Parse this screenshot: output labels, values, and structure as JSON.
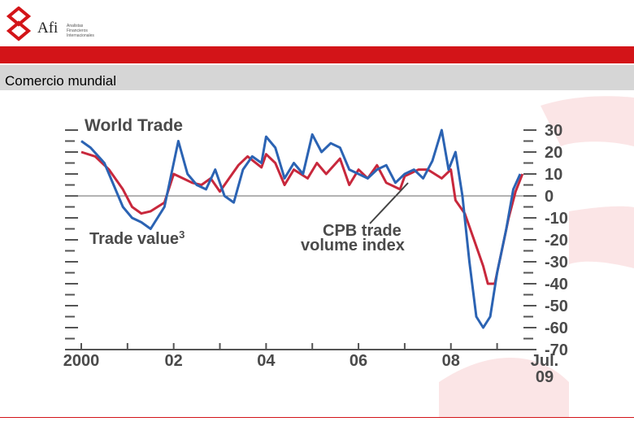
{
  "header": {
    "logo_name": "Afi",
    "logo_sub": [
      "Analistas",
      "Financieros",
      "Internacionales"
    ],
    "section_title": "Comercio mundial"
  },
  "colors": {
    "accent_red": "#d31418",
    "title_bar_gray": "#d6d6d6",
    "trade_value_line": "#c8283c",
    "cpb_volume_line": "#2b63b3"
  },
  "chart_data": {
    "type": "line",
    "title": "World Trade",
    "x_start": 2000,
    "x_end": 2009.5,
    "y_range": [
      -70,
      30
    ],
    "y_ticks": [
      30,
      20,
      10,
      0,
      -10,
      -20,
      -30,
      -40,
      -50,
      -60,
      -70
    ],
    "x_ticks": [
      {
        "value": 2000,
        "label": "2000"
      },
      {
        "value": 2002,
        "label": "02"
      },
      {
        "value": 2004,
        "label": "04"
      },
      {
        "value": 2006,
        "label": "06"
      },
      {
        "value": 2008,
        "label": "08"
      }
    ],
    "x_end_label": [
      "Jul.",
      "09"
    ],
    "zero_line": true,
    "series": [
      {
        "name": "Trade value",
        "superscript": "3",
        "color": "#c8283c",
        "x": [
          2000.0,
          2000.3,
          2000.6,
          2000.9,
          2001.1,
          2001.3,
          2001.5,
          2001.8,
          2002.0,
          2002.2,
          2002.4,
          2002.6,
          2002.8,
          2003.0,
          2003.2,
          2003.4,
          2003.6,
          2003.9,
          2004.0,
          2004.2,
          2004.4,
          2004.6,
          2004.9,
          2005.1,
          2005.3,
          2005.6,
          2005.8,
          2006.0,
          2006.2,
          2006.4,
          2006.6,
          2006.9,
          2007.0,
          2007.3,
          2007.5,
          2007.8,
          2008.0,
          2008.1,
          2008.3,
          2008.5,
          2008.7,
          2008.8,
          2008.95,
          2009.1,
          2009.25,
          2009.4,
          2009.55
        ],
        "values": [
          20,
          18,
          12,
          3,
          -5,
          -8,
          -7,
          -3,
          10,
          8,
          6,
          5,
          8,
          2,
          8,
          14,
          18,
          13,
          19,
          15,
          5,
          12,
          8,
          15,
          10,
          17,
          5,
          12,
          8,
          14,
          6,
          3,
          9,
          12,
          12,
          8,
          12,
          -2,
          -8,
          -20,
          -32,
          -40,
          -40,
          -25,
          -10,
          2,
          10
        ]
      },
      {
        "name": "CPB trade volume index",
        "color": "#2b63b3",
        "x": [
          2000.0,
          2000.2,
          2000.5,
          2000.7,
          2000.9,
          2001.1,
          2001.3,
          2001.5,
          2001.8,
          2002.0,
          2002.1,
          2002.3,
          2002.5,
          2002.7,
          2002.9,
          2003.1,
          2003.3,
          2003.5,
          2003.7,
          2003.9,
          2004.0,
          2004.2,
          2004.4,
          2004.6,
          2004.8,
          2005.0,
          2005.2,
          2005.4,
          2005.6,
          2005.8,
          2006.0,
          2006.2,
          2006.4,
          2006.6,
          2006.8,
          2007.0,
          2007.2,
          2007.4,
          2007.6,
          2007.8,
          2007.95,
          2008.1,
          2008.25,
          2008.4,
          2008.55,
          2008.7,
          2008.85,
          2009.0,
          2009.2,
          2009.35,
          2009.5
        ],
        "values": [
          25,
          22,
          15,
          5,
          -5,
          -10,
          -12,
          -15,
          -5,
          15,
          25,
          10,
          5,
          3,
          12,
          0,
          -3,
          12,
          18,
          15,
          27,
          22,
          8,
          15,
          10,
          28,
          20,
          24,
          22,
          12,
          10,
          8,
          12,
          14,
          6,
          10,
          12,
          8,
          16,
          30,
          12,
          20,
          0,
          -30,
          -55,
          -60,
          -55,
          -35,
          -15,
          3,
          10
        ]
      }
    ],
    "annotations": [
      {
        "text": "Trade value",
        "superscript": "3"
      },
      {
        "text_lines": [
          "CPB trade",
          "volume index"
        ]
      }
    ]
  }
}
